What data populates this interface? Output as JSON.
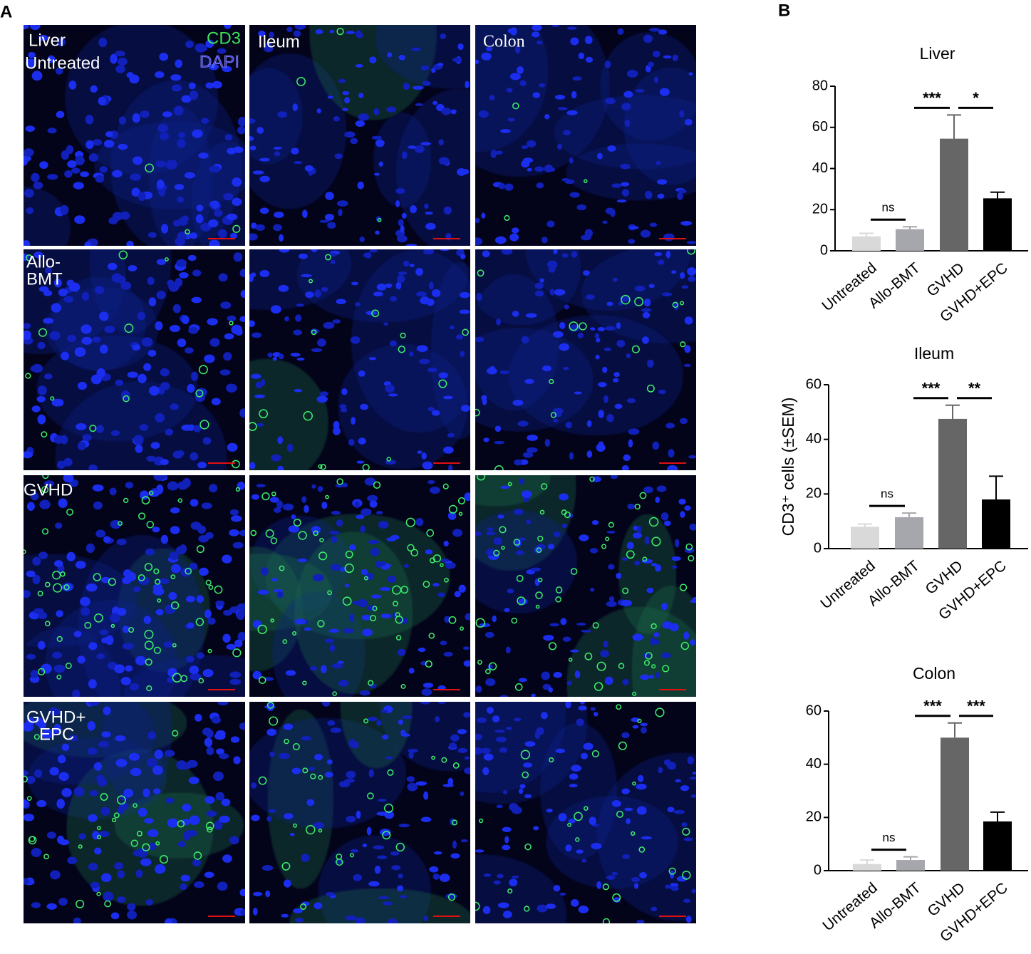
{
  "figure": {
    "panel_a": "A",
    "panel_b": "B",
    "markers": [
      "CD3",
      "DAPI"
    ],
    "tissues": [
      "Liver",
      "Ileum",
      "Colon"
    ],
    "groups": [
      [
        "Untreated"
      ],
      [
        "Allo-",
        "BMT"
      ],
      [
        "GVHD"
      ],
      [
        "GVHD+",
        "EPC"
      ]
    ]
  },
  "chart_data": [
    {
      "type": "bar",
      "title": "Liver",
      "categories": [
        "Untreated",
        "Allo-BMT",
        "GVHD",
        "GVHD+EPC"
      ],
      "values": [
        7,
        10.5,
        54.5,
        25.5
      ],
      "errors": [
        1.5,
        1.2,
        11.5,
        3
      ],
      "colors": [
        "#d9d9d9",
        "#a6a6ad",
        "#666666",
        "#000000"
      ],
      "ylim": [
        0,
        80
      ],
      "yticks": [
        0,
        20,
        40,
        60,
        80
      ],
      "comparisons": [
        {
          "between": [
            0,
            1
          ],
          "label": "ns"
        },
        {
          "between": [
            1,
            2
          ],
          "label": "***"
        },
        {
          "between": [
            2,
            3
          ],
          "label": "*"
        }
      ]
    },
    {
      "type": "bar",
      "title": "Ileum",
      "y_label": "CD3⁺ cells (±SEM)",
      "categories": [
        "Untreated",
        "Allo-BMT",
        "GVHD",
        "GVHD+EPC"
      ],
      "values": [
        8,
        11.5,
        47.5,
        18
      ],
      "errors": [
        1,
        1.5,
        5,
        8.5
      ],
      "colors": [
        "#d9d9d9",
        "#a6a6ad",
        "#666666",
        "#000000"
      ],
      "ylim": [
        0,
        60
      ],
      "yticks": [
        0,
        20,
        40,
        60
      ],
      "comparisons": [
        {
          "between": [
            0,
            1
          ],
          "label": "ns"
        },
        {
          "between": [
            1,
            2
          ],
          "label": "***"
        },
        {
          "between": [
            2,
            3
          ],
          "label": "**"
        }
      ]
    },
    {
      "type": "bar",
      "title": "Colon",
      "categories": [
        "Untreated",
        "Allo-BMT",
        "GVHD",
        "GVHD+EPC"
      ],
      "values": [
        2.5,
        4,
        50,
        18.5
      ],
      "errors": [
        1.5,
        1.2,
        5.5,
        3.5
      ],
      "colors": [
        "#d9d9d9",
        "#a6a6ad",
        "#666666",
        "#000000"
      ],
      "ylim": [
        0,
        60
      ],
      "yticks": [
        0,
        20,
        40,
        60
      ],
      "comparisons": [
        {
          "between": [
            0,
            1
          ],
          "label": "ns"
        },
        {
          "between": [
            1,
            2
          ],
          "label": "***"
        },
        {
          "between": [
            2,
            3
          ],
          "label": "***"
        }
      ]
    }
  ]
}
